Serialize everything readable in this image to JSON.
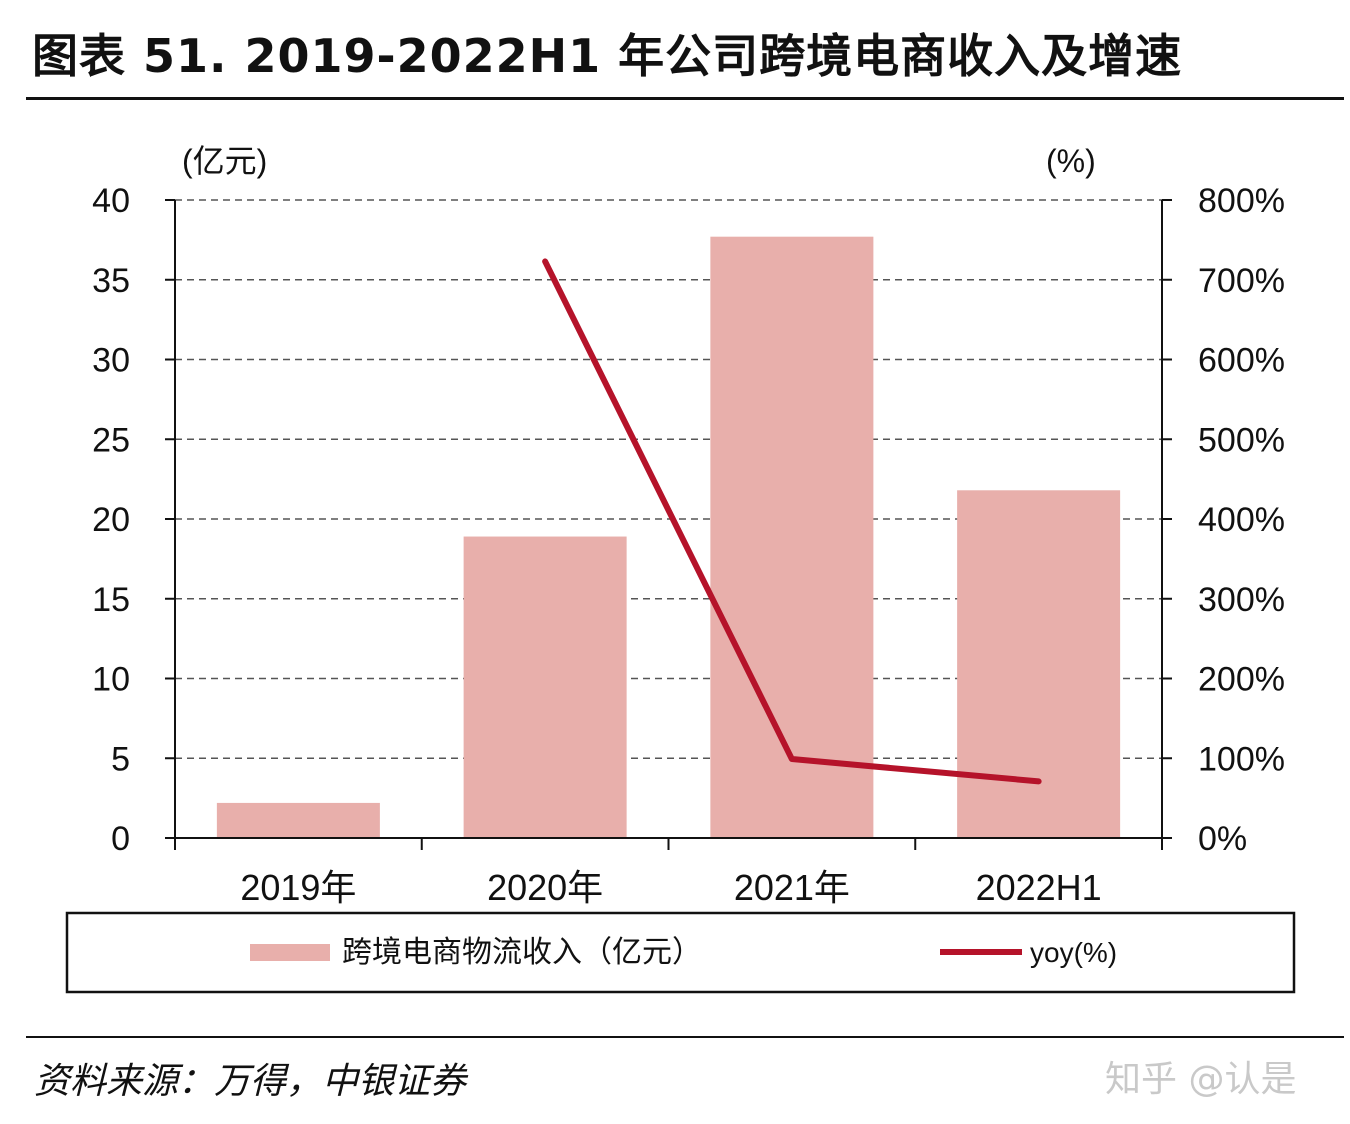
{
  "header": {
    "title": "图表 51. 2019-2022H1 年公司跨境电商收入及增速"
  },
  "footer": {
    "source": "资料来源：万得，中银证券",
    "watermark": "知乎 @认是"
  },
  "colors": {
    "bar": "#e8afab",
    "line": "#b5132a",
    "grid": "#555555",
    "axis": "#111111"
  },
  "chart_data": {
    "type": "bar",
    "categories": [
      "2019年",
      "2020年",
      "2021年",
      "2022H1"
    ],
    "series": [
      {
        "name": "跨境电商物流收入（亿元）",
        "type": "bar",
        "axis": "left",
        "values": [
          2.2,
          18.9,
          37.7,
          21.8
        ]
      },
      {
        "name": "yoy(%)",
        "type": "line",
        "axis": "right",
        "values": [
          null,
          723,
          99,
          71
        ]
      }
    ],
    "left_axis": {
      "unit_label": "(亿元)",
      "ylim": [
        0,
        40
      ],
      "ticks": [
        "0",
        "5",
        "10",
        "15",
        "20",
        "25",
        "30",
        "35",
        "40"
      ]
    },
    "right_axis": {
      "unit_label": "(%)",
      "ylim": [
        0,
        800
      ],
      "ticks": [
        "0%",
        "100%",
        "200%",
        "300%",
        "400%",
        "500%",
        "600%",
        "700%",
        "800%"
      ]
    },
    "grid": true,
    "legend": "bottom"
  }
}
